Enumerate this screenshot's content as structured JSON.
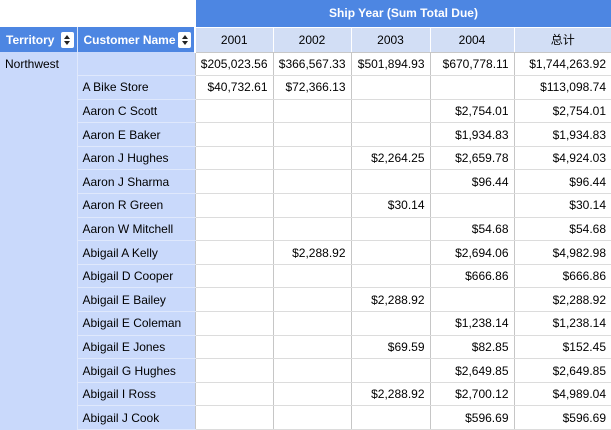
{
  "banner": {
    "title": "Ship Year (Sum Total Due)"
  },
  "fields": {
    "territory": {
      "label": "Territory"
    },
    "customer": {
      "label": "Customer Name"
    }
  },
  "year_columns": [
    "2001",
    "2002",
    "2003",
    "2004",
    "总计"
  ],
  "rows": [
    {
      "territory": "Northwest",
      "customer": "",
      "values": [
        "$205,023.56",
        "$366,567.33",
        "$501,894.93",
        "$670,778.11",
        "$1,744,263.92"
      ]
    },
    {
      "territory": "",
      "customer": "A Bike Store",
      "values": [
        "$40,732.61",
        "$72,366.13",
        "",
        "",
        "$113,098.74"
      ]
    },
    {
      "territory": "",
      "customer": "Aaron C Scott",
      "values": [
        "",
        "",
        "",
        "$2,754.01",
        "$2,754.01"
      ]
    },
    {
      "territory": "",
      "customer": "Aaron E Baker",
      "values": [
        "",
        "",
        "",
        "$1,934.83",
        "$1,934.83"
      ]
    },
    {
      "territory": "",
      "customer": "Aaron J Hughes",
      "values": [
        "",
        "",
        "$2,264.25",
        "$2,659.78",
        "$4,924.03"
      ]
    },
    {
      "territory": "",
      "customer": "Aaron J Sharma",
      "values": [
        "",
        "",
        "",
        "$96.44",
        "$96.44"
      ]
    },
    {
      "territory": "",
      "customer": "Aaron R Green",
      "values": [
        "",
        "",
        "$30.14",
        "",
        "$30.14"
      ]
    },
    {
      "territory": "",
      "customer": "Aaron W Mitchell",
      "values": [
        "",
        "",
        "",
        "$54.68",
        "$54.68"
      ]
    },
    {
      "territory": "",
      "customer": "Abigail A Kelly",
      "values": [
        "",
        "$2,288.92",
        "",
        "$2,694.06",
        "$4,982.98"
      ]
    },
    {
      "territory": "",
      "customer": "Abigail D Cooper",
      "values": [
        "",
        "",
        "",
        "$666.86",
        "$666.86"
      ]
    },
    {
      "territory": "",
      "customer": "Abigail E Bailey",
      "values": [
        "",
        "",
        "$2,288.92",
        "",
        "$2,288.92"
      ]
    },
    {
      "territory": "",
      "customer": "Abigail E Coleman",
      "values": [
        "",
        "",
        "",
        "$1,238.14",
        "$1,238.14"
      ]
    },
    {
      "territory": "",
      "customer": "Abigail E Jones",
      "values": [
        "",
        "",
        "$69.59",
        "$82.85",
        "$152.45"
      ]
    },
    {
      "territory": "",
      "customer": "Abigail G Hughes",
      "values": [
        "",
        "",
        "",
        "$2,649.85",
        "$2,649.85"
      ]
    },
    {
      "territory": "",
      "customer": "Abigail I Ross",
      "values": [
        "",
        "",
        "$2,288.92",
        "$2,700.12",
        "$4,989.04"
      ]
    },
    {
      "territory": "",
      "customer": "Abigail J Cook",
      "values": [
        "",
        "",
        "",
        "$596.69",
        "$596.69"
      ]
    }
  ],
  "icons": {
    "territory_sort": "sort-asc-desc-icon",
    "customer_sort": "sort-asc-desc-icon"
  },
  "colors": {
    "header_blue": "#4d86e2",
    "year_header_bg": "#d2def5",
    "row_label_bg": "#c9d9fb",
    "data_bg": "#ffffff",
    "grid_vertical": "#c6c6c6",
    "grid_horizontal": "#dcdcdc"
  }
}
